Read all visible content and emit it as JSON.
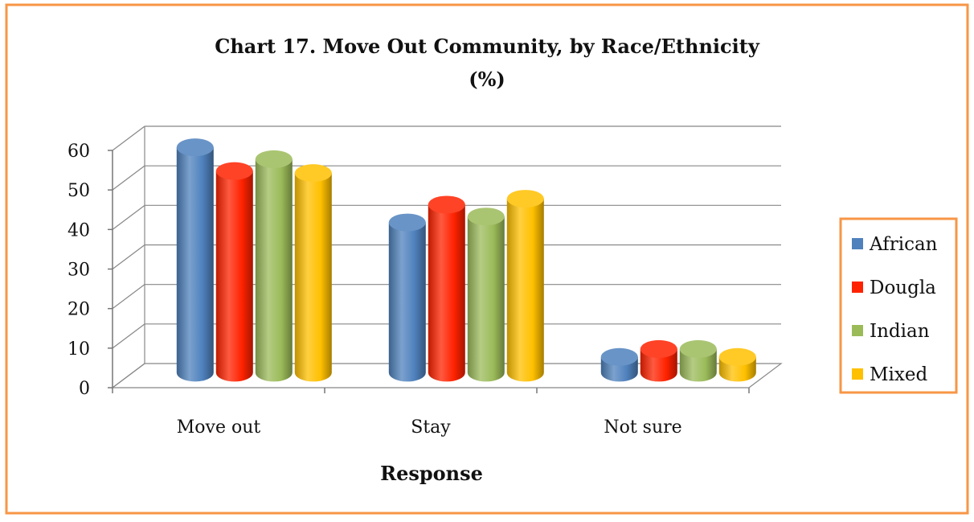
{
  "chart_data": {
    "type": "bar",
    "title": "Chart 17. Move Out Community, by Race/Ethnicity",
    "subtitle": "(%)",
    "xlabel": "Response",
    "ylabel": "",
    "categories": [
      "Move out",
      "Stay",
      "Not sure"
    ],
    "ylim": [
      0,
      60
    ],
    "yticks": [
      0,
      10,
      20,
      30,
      40,
      50,
      60
    ],
    "grid": true,
    "legend_position": "right",
    "series": [
      {
        "name": "African",
        "color": "#4F81BD",
        "values": [
          57,
          38,
          4
        ]
      },
      {
        "name": "Dougla",
        "color": "#FF2200",
        "values": [
          51,
          42.5,
          6
        ]
      },
      {
        "name": "Indian",
        "color": "#9BBB59",
        "values": [
          54,
          39.5,
          6
        ]
      },
      {
        "name": "Mixed",
        "color": "#FFC000",
        "values": [
          50.5,
          44,
          4
        ]
      }
    ]
  },
  "frame_color": "#F79646"
}
